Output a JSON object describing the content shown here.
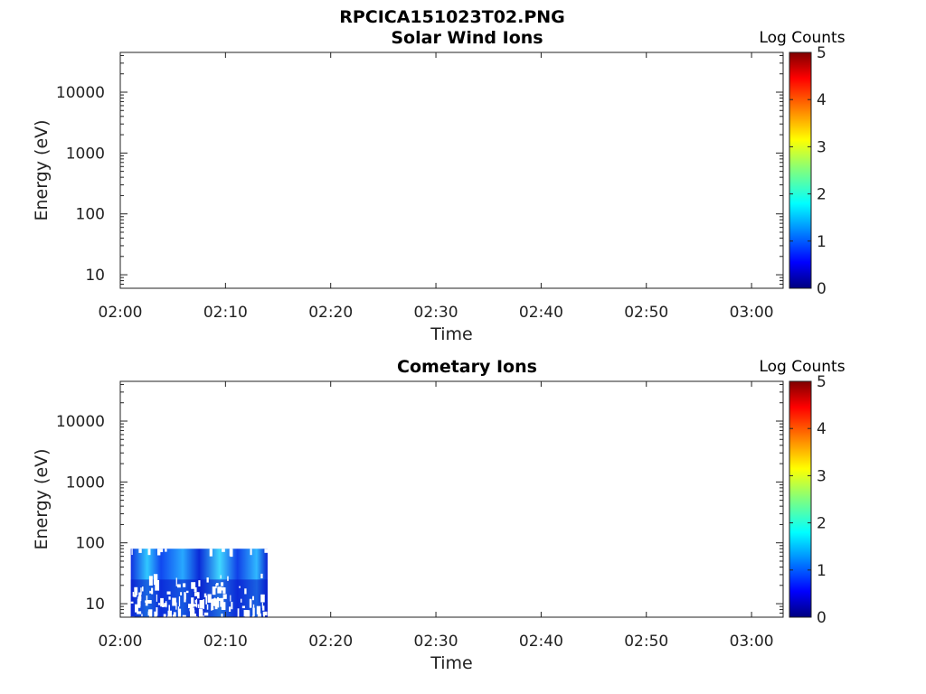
{
  "figure": {
    "title": "RPCICA151023T02.PNG"
  },
  "chart_data": [
    {
      "type": "heatmap",
      "title": "Solar Wind Ions",
      "xlabel": "Time",
      "ylabel": "Energy (eV)",
      "x_ticks": [
        "02:00",
        "02:10",
        "02:20",
        "02:30",
        "02:40",
        "02:50",
        "03:00"
      ],
      "xlim": [
        "02:00",
        "03:03"
      ],
      "y_scale": "log",
      "y_ticks": [
        "10",
        "100",
        "1000",
        "10000"
      ],
      "ylim": [
        6,
        45000
      ],
      "colorbar": {
        "label": "Log Counts",
        "ticks": [
          "0",
          "1",
          "2",
          "3",
          "4",
          "5"
        ],
        "range": [
          0,
          5
        ],
        "colormap": "jet"
      },
      "data": []
    },
    {
      "type": "heatmap",
      "title": "Cometary Ions",
      "xlabel": "Time",
      "ylabel": "Energy (eV)",
      "x_ticks": [
        "02:00",
        "02:10",
        "02:20",
        "02:30",
        "02:40",
        "02:50",
        "03:00"
      ],
      "xlim": [
        "02:00",
        "03:03"
      ],
      "y_scale": "log",
      "y_ticks": [
        "10",
        "100",
        "1000",
        "10000"
      ],
      "ylim": [
        6,
        45000
      ],
      "colorbar": {
        "label": "Log Counts",
        "ticks": [
          "0",
          "1",
          "2",
          "3",
          "4",
          "5"
        ],
        "range": [
          0,
          5
        ],
        "colormap": "jet"
      },
      "data": {
        "time_range": [
          "02:01",
          "02:14"
        ],
        "energy_range_eV": [
          6,
          80
        ],
        "log_counts_range": [
          0.3,
          1.9
        ]
      }
    }
  ]
}
